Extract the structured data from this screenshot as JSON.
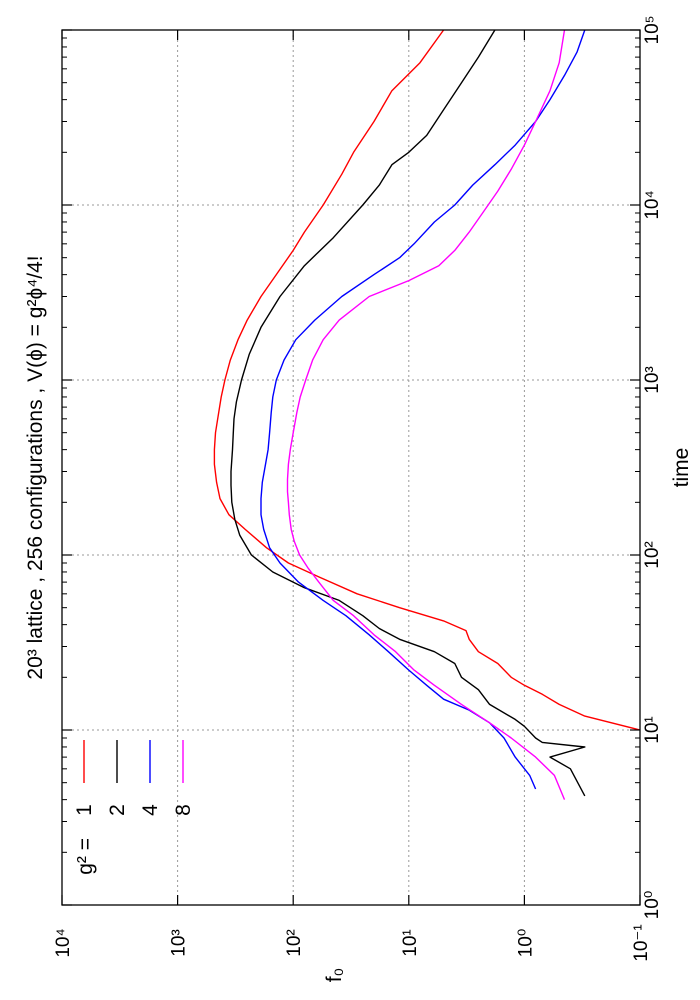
{
  "chart_data": {
    "type": "line",
    "title": "20³ lattice ,  256 configurations ,  V(ϕ) = g²ϕ⁴/4!",
    "xlabel": "time",
    "ylabel": "f₀",
    "xscale": "log",
    "yscale": "log",
    "xlim": [
      1,
      100000
    ],
    "ylim": [
      0.1,
      10000
    ],
    "x_ticks": [
      {
        "value": 1,
        "label": "10⁰"
      },
      {
        "value": 10,
        "label": "10¹"
      },
      {
        "value": 100,
        "label": "10²"
      },
      {
        "value": 1000,
        "label": "10³"
      },
      {
        "value": 10000,
        "label": "10⁴"
      },
      {
        "value": 100000,
        "label": "10⁵"
      }
    ],
    "y_ticks": [
      {
        "value": 0.1,
        "label": "10⁻¹"
      },
      {
        "value": 1,
        "label": "10⁰"
      },
      {
        "value": 10,
        "label": "10¹"
      },
      {
        "value": 100,
        "label": "10²"
      },
      {
        "value": 1000,
        "label": "10³"
      },
      {
        "value": 10000,
        "label": "10⁴"
      }
    ],
    "grid": true,
    "legend_position": "top-left",
    "legend_prefix": "g² =",
    "series": [
      {
        "name": "1",
        "color": "#ff0000",
        "x": [
          10,
          12,
          14,
          16,
          18,
          20,
          24,
          28,
          33,
          37,
          42,
          50,
          60,
          75,
          90,
          110,
          140,
          170,
          210,
          260,
          330,
          400,
          500,
          600,
          800,
          1000,
          1300,
          1700,
          2200,
          3000,
          4000,
          5500,
          7000,
          10000,
          15000,
          20000,
          30000,
          45000,
          65000,
          100000
        ],
        "y": [
          0.1,
          0.3,
          0.5,
          0.7,
          1.0,
          1.3,
          1.7,
          2.5,
          3.0,
          3.2,
          5.0,
          12,
          28,
          60,
          110,
          170,
          260,
          360,
          430,
          460,
          480,
          480,
          470,
          450,
          420,
          390,
          350,
          300,
          250,
          190,
          140,
          100,
          80,
          55,
          38,
          30,
          20,
          14,
          8,
          5
        ]
      },
      {
        "name": "2",
        "color": "#000000",
        "x": [
          4.2,
          6,
          7,
          8,
          8.5,
          9,
          10.5,
          11.5,
          14,
          17,
          20,
          24,
          28,
          33,
          38,
          45,
          55,
          65,
          80,
          100,
          130,
          160,
          200,
          250,
          300,
          350,
          400,
          500,
          600,
          750,
          1000,
          1400,
          2000,
          3000,
          4500,
          6500,
          10000,
          13000,
          17000,
          20000,
          25000,
          35000,
          50000,
          70000,
          100000
        ],
        "y": [
          0.3,
          0.4,
          0.6,
          0.3,
          0.7,
          0.8,
          1.0,
          1.2,
          2.0,
          2.5,
          3.5,
          4.0,
          6.0,
          12,
          18,
          25,
          40,
          80,
          150,
          230,
          290,
          320,
          340,
          345,
          345,
          340,
          335,
          330,
          325,
          310,
          280,
          240,
          190,
          130,
          80,
          45,
          25,
          18,
          14,
          10,
          7,
          5,
          3.5,
          2.5,
          1.8
        ]
      },
      {
        "name": "4",
        "color": "#0000ff",
        "x": [
          4.6,
          5.5,
          7,
          9,
          11,
          13,
          15,
          18,
          22,
          28,
          35,
          45,
          55,
          70,
          90,
          110,
          140,
          170,
          210,
          260,
          320,
          400,
          500,
          650,
          800,
          1000,
          1300,
          1700,
          2200,
          3000,
          4000,
          5000,
          6000,
          8000,
          10000,
          13000,
          17000,
          22000,
          30000,
          40000,
          55000,
          75000,
          100000
        ],
        "y": [
          0.8,
          0.9,
          1.2,
          1.5,
          2.0,
          3.0,
          5.0,
          7.0,
          10,
          15,
          22,
          35,
          55,
          90,
          130,
          160,
          180,
          190,
          190,
          185,
          175,
          165,
          160,
          155,
          150,
          140,
          120,
          95,
          65,
          38,
          20,
          12,
          9,
          6,
          4,
          2.8,
          1.8,
          1.2,
          0.8,
          0.6,
          0.45,
          0.35,
          0.3
        ]
      },
      {
        "name": "8",
        "color": "#ff00ff",
        "x": [
          4.0,
          5.5,
          7,
          9,
          11,
          14,
          18,
          22,
          28,
          35,
          45,
          55,
          70,
          85,
          100,
          120,
          140,
          170,
          200,
          230,
          270,
          330,
          400,
          500,
          650,
          800,
          1000,
          1300,
          1700,
          2200,
          3000,
          3700,
          4500,
          5500,
          7000,
          9000,
          12000,
          16000,
          22000,
          30000,
          45000,
          65000,
          100000
        ],
        "y": [
          0.45,
          0.55,
          0.8,
          1.3,
          2.0,
          3.5,
          6.0,
          9.0,
          13,
          20,
          30,
          45,
          60,
          75,
          88,
          98,
          104,
          108,
          110,
          112,
          112,
          110,
          106,
          100,
          93,
          87,
          78,
          68,
          55,
          40,
          22,
          10,
          5.5,
          4.0,
          3.0,
          2.3,
          1.7,
          1.3,
          1.0,
          0.8,
          0.6,
          0.5,
          0.45
        ]
      }
    ]
  }
}
